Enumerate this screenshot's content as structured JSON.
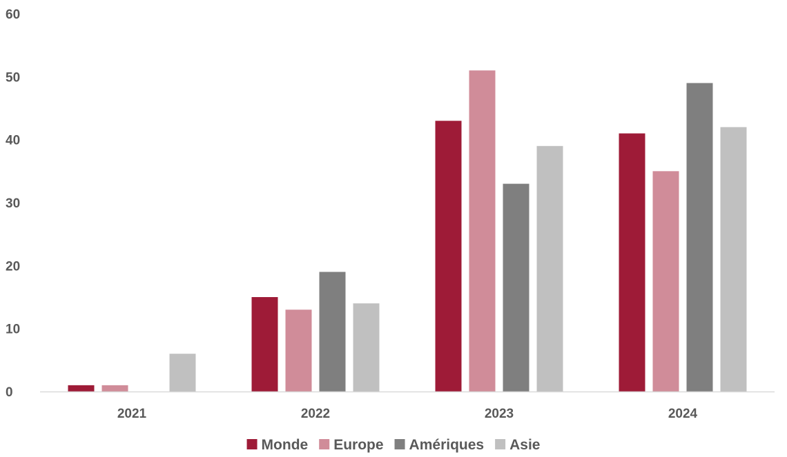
{
  "chart_data": {
    "type": "bar",
    "categories": [
      "2021",
      "2022",
      "2023",
      "2024"
    ],
    "series": [
      {
        "name": "Monde",
        "color": "#9e1b37",
        "values": [
          1,
          15,
          43,
          41
        ]
      },
      {
        "name": "Europe",
        "color": "#d08c99",
        "values": [
          1,
          13,
          51,
          35
        ]
      },
      {
        "name": "Amériques",
        "color": "#7f7f7f",
        "values": [
          0,
          19,
          33,
          49
        ]
      },
      {
        "name": "Asie",
        "color": "#c0c0c0",
        "values": [
          6,
          14,
          39,
          42
        ]
      }
    ],
    "yticks": [
      "0",
      "10",
      "20",
      "30",
      "40",
      "50",
      "60"
    ],
    "ylim": [
      0,
      60
    ],
    "grid": false,
    "legend_position": "bottom",
    "axis_color": "#d9d9d9",
    "text_color": "#595959"
  }
}
